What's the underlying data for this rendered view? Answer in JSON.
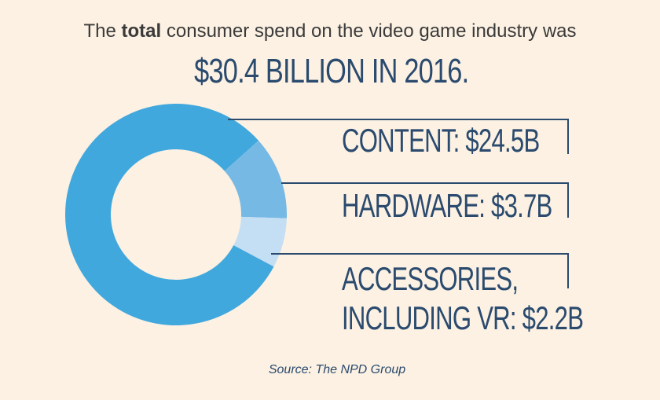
{
  "headline": {
    "prefix": "The ",
    "bold": "total",
    "suffix": " consumer spend on the video game industry was"
  },
  "big_stat": "$30.4 BILLION IN 2016.",
  "source": "Source: The NPD Group",
  "colors": {
    "background": "#fcf1e3",
    "navy": "#2a4a6e",
    "content": "#41a8dd",
    "hardware": "#76b9e4",
    "accessories": "#c4def3"
  },
  "chart_data": {
    "type": "pie",
    "variant": "donut",
    "title": "$30.4 BILLION IN 2016.",
    "total": 30.4,
    "unit": "$B",
    "categories": [
      "Content",
      "Hardware",
      "Accessories, including VR"
    ],
    "values": [
      24.5,
      3.7,
      2.2
    ],
    "labels": [
      "CONTENT: $24.5B",
      "HARDWARE: $3.7B",
      "ACCESSORIES,\nINCLUDING VR: $2.2B"
    ],
    "label_lines": [
      [
        "CONTENT: $24.5B"
      ],
      [
        "HARDWARE: $3.7B"
      ],
      [
        "ACCESSORIES,",
        "INCLUDING VR: $2.2B"
      ]
    ],
    "slice_colors": [
      "#41a8dd",
      "#76b9e4",
      "#c4def3"
    ]
  }
}
